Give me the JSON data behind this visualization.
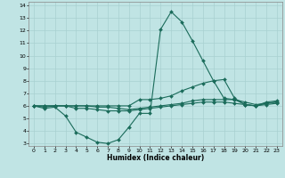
{
  "xlabel": "Humidex (Indice chaleur)",
  "xlim": [
    -0.5,
    23.5
  ],
  "ylim": [
    2.8,
    14.3
  ],
  "yticks": [
    3,
    4,
    5,
    6,
    7,
    8,
    9,
    10,
    11,
    12,
    13,
    14
  ],
  "xticks": [
    0,
    1,
    2,
    3,
    4,
    5,
    6,
    7,
    8,
    9,
    10,
    11,
    12,
    13,
    14,
    15,
    16,
    17,
    18,
    19,
    20,
    21,
    22,
    23
  ],
  "bg_color": "#c0e4e4",
  "grid_color": "#a8d0d0",
  "line_color": "#1a6b5a",
  "lines": [
    {
      "x": [
        0,
        1,
        2,
        3,
        4,
        5,
        6,
        7,
        8,
        9,
        10,
        11,
        12,
        13,
        14,
        15,
        16,
        17,
        18,
        19,
        20,
        21,
        22,
        23
      ],
      "y": [
        6.0,
        5.8,
        5.9,
        5.2,
        3.9,
        3.5,
        3.1,
        3.0,
        3.3,
        4.3,
        5.4,
        5.4,
        12.1,
        13.5,
        12.7,
        11.2,
        9.6,
        8.0,
        6.6,
        6.5,
        6.1,
        6.0,
        6.2,
        6.3
      ]
    },
    {
      "x": [
        0,
        1,
        2,
        3,
        4,
        5,
        6,
        7,
        8,
        9,
        10,
        11,
        12,
        13,
        14,
        15,
        16,
        17,
        18,
        19,
        20,
        21,
        22,
        23
      ],
      "y": [
        6.0,
        5.9,
        6.0,
        6.0,
        6.0,
        6.0,
        6.0,
        6.0,
        6.0,
        6.0,
        6.5,
        6.5,
        6.6,
        6.8,
        7.2,
        7.5,
        7.8,
        8.0,
        8.1,
        6.6,
        6.1,
        6.0,
        6.3,
        6.4
      ]
    },
    {
      "x": [
        0,
        1,
        2,
        3,
        4,
        5,
        6,
        7,
        8,
        9,
        10,
        11,
        12,
        13,
        14,
        15,
        16,
        17,
        18,
        19,
        20,
        21,
        22,
        23
      ],
      "y": [
        6.0,
        6.0,
        6.0,
        6.0,
        6.0,
        6.0,
        5.9,
        5.9,
        5.8,
        5.7,
        5.8,
        5.9,
        6.0,
        6.1,
        6.2,
        6.4,
        6.5,
        6.5,
        6.5,
        6.5,
        6.3,
        6.1,
        6.2,
        6.3
      ]
    },
    {
      "x": [
        0,
        1,
        2,
        3,
        4,
        5,
        6,
        7,
        8,
        9,
        10,
        11,
        12,
        13,
        14,
        15,
        16,
        17,
        18,
        19,
        20,
        21,
        22,
        23
      ],
      "y": [
        6.0,
        6.0,
        6.0,
        6.0,
        5.8,
        5.8,
        5.7,
        5.6,
        5.6,
        5.6,
        5.7,
        5.8,
        5.9,
        6.0,
        6.1,
        6.2,
        6.3,
        6.3,
        6.3,
        6.2,
        6.1,
        6.0,
        6.1,
        6.2
      ]
    }
  ]
}
